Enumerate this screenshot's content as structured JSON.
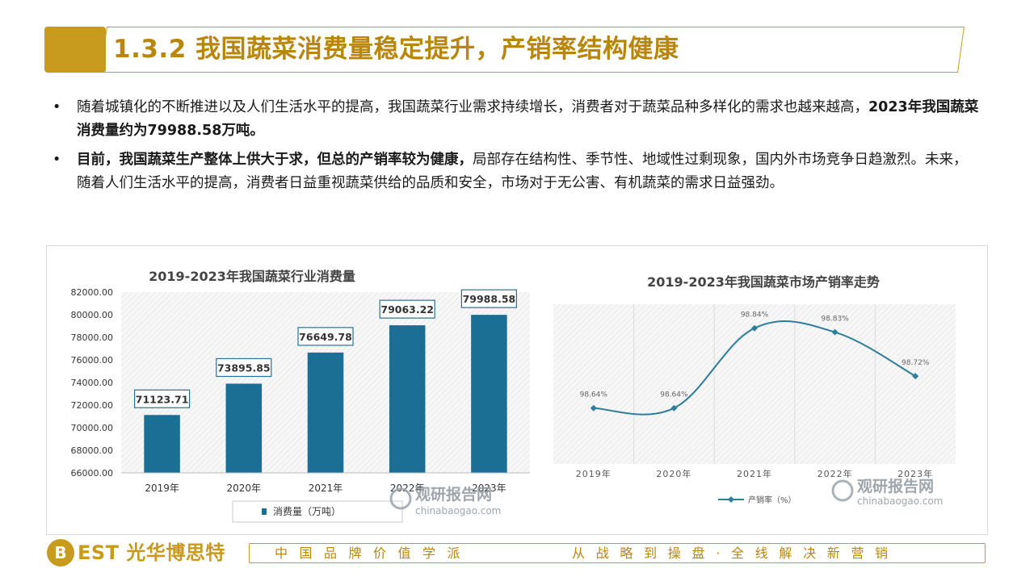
{
  "header": {
    "title": "1.3.2 我国蔬菜消费量稳定提升，产销率结构健康"
  },
  "bullets": [
    {
      "bullet_symbol": "•",
      "text_plain": "随着城镇化的不断推进以及人们生活水平的提高，我国蔬菜行业需求持续增长，消费者对于蔬菜品种多样化的需求也越来越高，",
      "text_bold": "2023年我国蔬菜消费量约为79988.58万吨。"
    },
    {
      "bullet_symbol": "•",
      "text_bold": "目前，我国蔬菜生产整体上供大于求，但总的产销率较为健康，",
      "text_plain": "局部存在结构性、季节性、地域性过剩现象，国内外市场竞争日趋激烈。未来，随着人们生活水平的提高，消费者日益重视蔬菜供给的品质和安全，市场对于无公害、有机蔬菜的需求日益强劲。"
    }
  ],
  "chart_data": [
    {
      "type": "bar",
      "title": "2019-2023年我国蔬菜行业消费量",
      "categories": [
        "2019年",
        "2020年",
        "2021年",
        "2022年",
        "2023年"
      ],
      "series": [
        {
          "name": "消费量（万吨）",
          "values": [
            71123.71,
            73895.85,
            76649.78,
            79063.22,
            79988.58
          ]
        }
      ],
      "data_labels": [
        "71123.71",
        "73895.85",
        "76649.78",
        "79063.22",
        "79988.58"
      ],
      "ylim": [
        66000,
        82000
      ],
      "yticks": [
        "82000.00",
        "80000.00",
        "78000.00",
        "76000.00",
        "74000.00",
        "72000.00",
        "70000.00",
        "68000.00",
        "66000.00"
      ],
      "legend": "bottom",
      "color": "#1b6f94"
    },
    {
      "type": "line",
      "title": "2019-2023年我国蔬菜市场产销率走势",
      "categories": [
        "2019年",
        "2020年",
        "2021年",
        "2022年",
        "2023年"
      ],
      "series": [
        {
          "name": "产销率（%）",
          "values": [
            98.64,
            98.64,
            98.84,
            98.83,
            98.72
          ]
        }
      ],
      "data_labels": [
        "98.64%",
        "98.64%",
        "98.84%",
        "98.83%",
        "98.72%"
      ],
      "legend": "bottom",
      "color": "#2e7d9a"
    }
  ],
  "watermark": {
    "name": "观研报告网",
    "url": "chinabaogao.com"
  },
  "footer": {
    "brand_letter": "B",
    "brand_name": "EST 光华博思特",
    "slogan_left": "中国品牌价值学派",
    "slogan_right": "从战略到操盘·全线解决新营销"
  },
  "colors": {
    "accent_gold": "#c89a1e",
    "bar_blue": "#1b6f94",
    "line_blue": "#2e7d9a"
  }
}
